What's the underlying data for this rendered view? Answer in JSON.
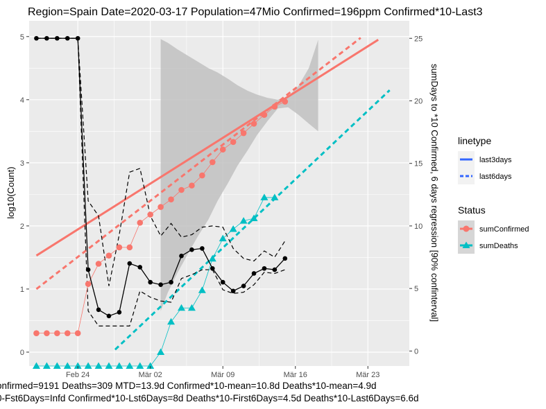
{
  "chart_data": {
    "type": "line",
    "title": "Region=Spain Date=2020-03-17  Population=47Mio Confirmed=196ppm  Confirmed*10-Last3",
    "ylabel": "log10(Count)",
    "y2label": "sumDays to *10 Confirmed, 6 days regression [90% confinterval]",
    "caption": [
      "onfirmed=9191 Deaths=309  MTD=13.9d   Confirmed*10-mean=10.8d  Deaths*10-mean=4.9d",
      "0-Fst6Days=Infd  Confirmed*10-Lst6Days=8d    Deaths*10-First6Days=4.5d  Deaths*10-Last6Days=6.6d"
    ],
    "x_ticks": [
      {
        "label": "Feb 24",
        "day": 4
      },
      {
        "label": "Mär 02",
        "day": 11
      },
      {
        "label": "Mär 09",
        "day": 18
      },
      {
        "label": "Mär 16",
        "day": 25
      },
      {
        "label": "Mär 23",
        "day": 32
      }
    ],
    "y_ticks": [
      0,
      1,
      2,
      3,
      4,
      5
    ],
    "y2_ticks": [
      0,
      5,
      10,
      15,
      20,
      25
    ],
    "xlim": [
      -0.7,
      36
    ],
    "ylim": [
      -0.22,
      5.25
    ],
    "y2lim": [
      -1.2,
      26.4
    ],
    "colors": {
      "confirmed": "#f8766d",
      "deaths": "#00bfc4",
      "days": "#000000",
      "ribbon": "#bdbdbd",
      "panel": "#ebebeb",
      "grid": "#ffffff",
      "legend_last3": "#3366ff"
    },
    "legend": {
      "linetype_title": "linetype",
      "linetype_items": [
        "last3days",
        "last6days"
      ],
      "status_title": "Status",
      "status_items": [
        "sumConfirmed",
        "sumDeaths"
      ]
    },
    "x_start_day": 0,
    "series": [
      {
        "name": "sumConfirmed",
        "values": [
          0.3,
          0.3,
          0.3,
          0.3,
          0.3,
          1.08,
          1.4,
          1.53,
          1.66,
          1.66,
          2.05,
          2.18,
          2.3,
          2.42,
          2.57,
          2.64,
          2.8,
          3.01,
          3.21,
          3.33,
          3.47,
          3.62,
          3.76,
          3.89,
          3.97
        ]
      },
      {
        "name": "sumDeaths",
        "values": [
          -0.22,
          -0.22,
          -0.22,
          -0.22,
          -0.22,
          -0.22,
          -0.22,
          -0.22,
          -0.22,
          -0.22,
          -0.22,
          -0.22,
          0.0,
          0.48,
          0.7,
          0.7,
          0.98,
          1.48,
          1.8,
          1.95,
          2.08,
          2.12,
          2.45,
          2.45
        ]
      },
      {
        "name": "days",
        "values": [
          25,
          25,
          25,
          25,
          25,
          6.5,
          3.3,
          2.8,
          3.1,
          7.0,
          6.7,
          5.5,
          5.3,
          5.5,
          7.6,
          8.1,
          8.2,
          6.6,
          5.5,
          4.8,
          5.2,
          6.2,
          6.6,
          6.5,
          7.4
        ]
      },
      {
        "name": "days_upper",
        "values": [
          25,
          25,
          25,
          25,
          25,
          12,
          10.8,
          5.2,
          9.3,
          14.3,
          14.6,
          10.8,
          9.2,
          10.2,
          9.1,
          9.3,
          9.9,
          10.0,
          9.9,
          8.2,
          7.4,
          7.2,
          8.0,
          7.5,
          8.8
        ]
      },
      {
        "name": "days_lower",
        "values": [
          25,
          25,
          25,
          25,
          25,
          3.2,
          2.0,
          2.0,
          2.0,
          2.0,
          4.8,
          4.3,
          4.0,
          3.9,
          5.8,
          6.1,
          6.5,
          6.5,
          4.9,
          4.6,
          4.7,
          5.3,
          6.3,
          6.2,
          6.5
        ]
      },
      {
        "name": "confirmed_last3days",
        "x": [
          0,
          33
        ],
        "values": [
          1.53,
          4.95
        ]
      },
      {
        "name": "confirmed_last6days",
        "x": [
          0,
          31.3
        ],
        "values": [
          1.0,
          4.98
        ]
      },
      {
        "name": "deaths_last6days",
        "x": [
          7.6,
          34.1
        ],
        "values": [
          0.04,
          4.15
        ]
      }
    ],
    "ribbon": {
      "x": [
        12,
        12.7,
        13.6,
        14.6,
        15.6,
        16.6,
        17.5,
        18.5,
        19.4,
        20.4,
        21.3,
        22.3,
        23.3,
        24.3,
        25.3,
        26.3,
        27.2
      ],
      "upper": [
        4.96,
        4.9,
        4.8,
        4.7,
        4.6,
        4.5,
        4.43,
        4.33,
        4.23,
        4.14,
        4.08,
        4.03,
        4.0,
        4.05,
        4.22,
        4.5,
        4.95
      ],
      "lower": [
        0.65,
        0.95,
        1.25,
        1.55,
        1.84,
        2.1,
        2.4,
        2.68,
        2.95,
        3.2,
        3.44,
        3.66,
        3.86,
        3.88,
        3.76,
        3.62,
        3.5
      ]
    }
  }
}
